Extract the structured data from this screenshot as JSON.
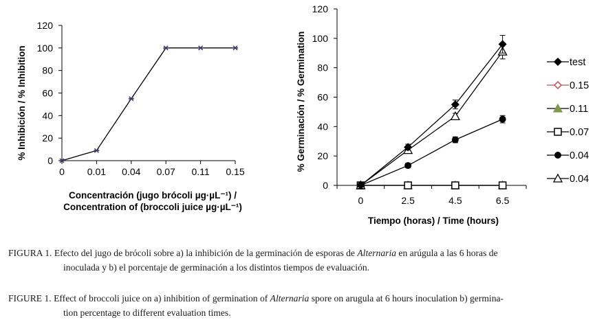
{
  "charts": [
    {
      "chart_data": {
        "type": "line",
        "categories": [
          "0",
          "0.01",
          "0.04",
          "0.07",
          "0.11",
          "0.15"
        ],
        "values": [
          0,
          9,
          55,
          100,
          100,
          100
        ],
        "ylim": [
          0,
          120
        ],
        "yticks": [
          "0",
          "20",
          "40",
          "60",
          "80",
          "100",
          "120"
        ],
        "ylabel": "% Inhibición / % Inhibition",
        "xlabel_line1": "Concentración (jugo brócoli µg·µL⁻¹) /",
        "xlabel_line2": "Concentration of (broccoli juice µg·µL⁻¹)"
      }
    },
    {
      "chart_data": {
        "type": "line",
        "categories": [
          "0",
          "2.5",
          "4.5",
          "6.5"
        ],
        "ylim": [
          0,
          120
        ],
        "yticks": [
          "0",
          "20",
          "40",
          "60",
          "80",
          "100",
          "120"
        ],
        "ylabel": "% Germinación / % Germination",
        "xlabel": "Tiempo (horas) / Time (hours)",
        "series": [
          {
            "name": "test",
            "marker": "diamond-filled",
            "color": "#000000",
            "values": [
              0,
              26,
              55,
              96
            ],
            "errors": [
              2,
              2,
              3,
              6
            ]
          },
          {
            "name": "0.15",
            "marker": "diamond-open",
            "color": "#c0504d",
            "values": [
              0,
              0,
              0,
              0
            ],
            "errors": [
              1,
              1,
              1,
              1
            ]
          },
          {
            "name": "0.11",
            "marker": "triangle-filled",
            "color": "#7a9a4a",
            "values": [
              0,
              0,
              0,
              0
            ],
            "errors": [
              1,
              1,
              1,
              1
            ]
          },
          {
            "name": "0.07",
            "marker": "square-open",
            "color": "#000000",
            "values": [
              0,
              0,
              0,
              0
            ],
            "errors": [
              1,
              1,
              1,
              1
            ]
          },
          {
            "name": "0.04",
            "marker": "circle-filled",
            "color": "#000000",
            "values": [
              0,
              13.5,
              31,
              45
            ],
            "errors": [
              1,
              1.5,
              2,
              2.5
            ]
          },
          {
            "name": "0.04",
            "marker": "triangle-open",
            "color": "#000000",
            "values": [
              0,
              24,
              47,
              91
            ],
            "errors": [
              1,
              2,
              2,
              5
            ]
          }
        ]
      }
    }
  ],
  "caption_es": {
    "label": "FIGURA 1.",
    "text_before": " Efecto del jugo de brócoli sobre a) la inhibición de la germinación de esporas de ",
    "italic": "Alternaria",
    "text_after_line1": " en arúgula a las 6 horas de",
    "line2": "inoculada y b) el porcentaje de germinación a los distintos tiempos de evaluación."
  },
  "caption_en": {
    "label": "FIGURE 1.",
    "text_before": " Effect of broccoli juice on a) inhibition of germination of ",
    "italic": "Alternaria",
    "text_after_line1": " spore on arugula at 6 hours inoculation b) germina-",
    "line2": "tion percentage to different evaluation times."
  }
}
